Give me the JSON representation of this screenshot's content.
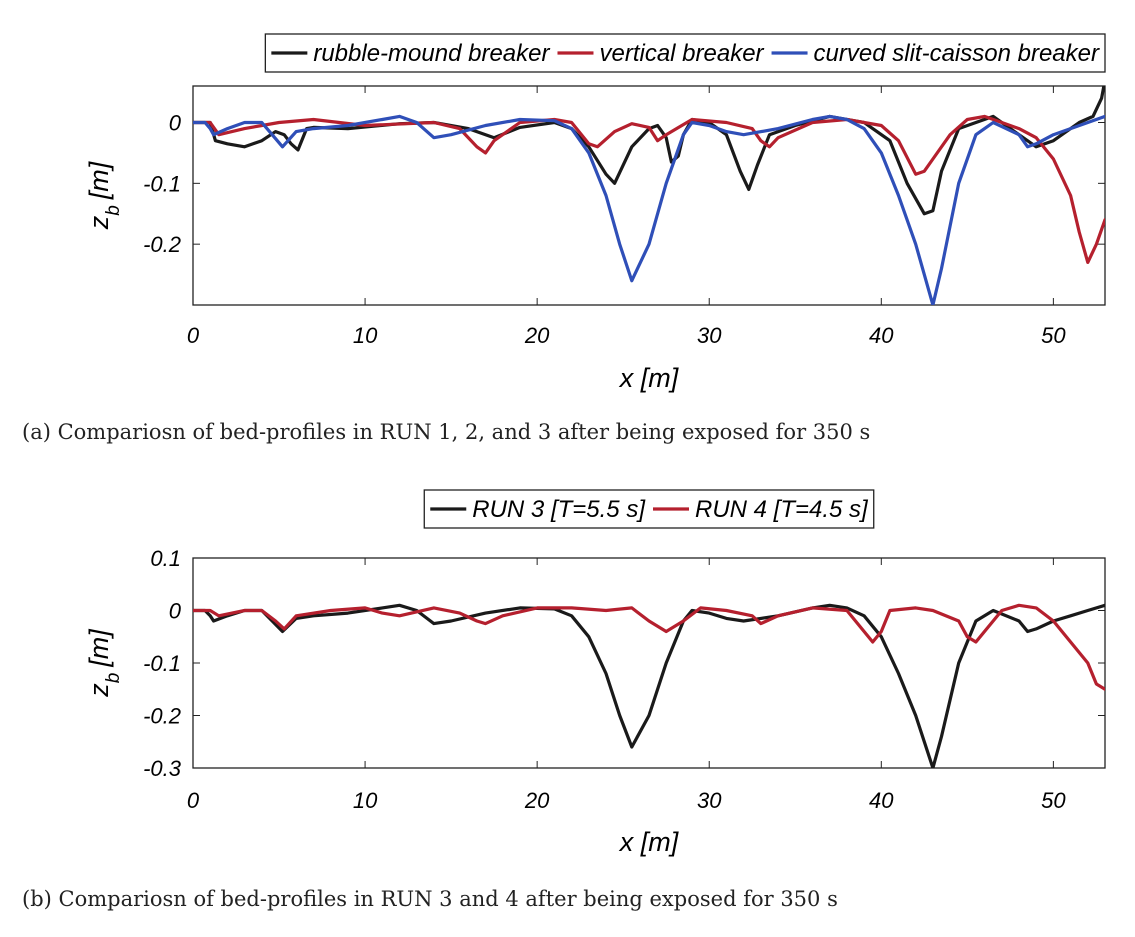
{
  "chart_data": [
    {
      "id": "panel-a",
      "type": "line",
      "caption": "(a) Compariosn of bed-profiles in RUN 1, 2, and 3 after being exposed for 350 s",
      "xlabel": "x [m]",
      "ylabel_main": "z",
      "ylabel_sub": "b",
      "ylabel_unit": "[m]",
      "xlim": [
        0,
        53
      ],
      "ylim": [
        -0.3,
        0.06
      ],
      "xticks": [
        0,
        10,
        20,
        30,
        40,
        50
      ],
      "xtick_labels": [
        "0",
        "10",
        "20",
        "30",
        "40",
        "50"
      ],
      "yticks": [
        0,
        -0.1,
        -0.2
      ],
      "ytick_labels": [
        "0",
        "-0.1",
        "-0.2"
      ],
      "grid": false,
      "legend_position": "top",
      "legend_orientation": "horizontal",
      "series": [
        {
          "name": "rubble-mound breaker",
          "color": "#1a1a1a",
          "points": [
            [
              0,
              0
            ],
            [
              1,
              0
            ],
            [
              1.3,
              -0.03
            ],
            [
              2,
              -0.035
            ],
            [
              3,
              -0.04
            ],
            [
              4,
              -0.03
            ],
            [
              4.8,
              -0.015
            ],
            [
              5.3,
              -0.02
            ],
            [
              5.7,
              -0.035
            ],
            [
              6.1,
              -0.045
            ],
            [
              6.6,
              -0.01
            ],
            [
              7,
              -0.008
            ],
            [
              9,
              -0.01
            ],
            [
              12,
              -0.002
            ],
            [
              14,
              0.0
            ],
            [
              16,
              -0.01
            ],
            [
              17.5,
              -0.025
            ],
            [
              19,
              -0.008
            ],
            [
              21,
              0.0
            ],
            [
              22,
              -0.01
            ],
            [
              23,
              -0.04
            ],
            [
              24,
              -0.085
            ],
            [
              24.5,
              -0.1
            ],
            [
              25,
              -0.07
            ],
            [
              25.5,
              -0.04
            ],
            [
              26.5,
              -0.01
            ],
            [
              27,
              -0.005
            ],
            [
              27.5,
              -0.025
            ],
            [
              27.8,
              -0.065
            ],
            [
              28.2,
              -0.055
            ],
            [
              28.5,
              -0.02
            ],
            [
              29,
              0.005
            ],
            [
              30,
              0.0
            ],
            [
              31,
              -0.02
            ],
            [
              31.8,
              -0.08
            ],
            [
              32.3,
              -0.11
            ],
            [
              32.8,
              -0.07
            ],
            [
              33.5,
              -0.02
            ],
            [
              35,
              -0.005
            ],
            [
              37,
              0.01
            ],
            [
              39,
              0.0
            ],
            [
              40.5,
              -0.03
            ],
            [
              41.5,
              -0.1
            ],
            [
              42.5,
              -0.15
            ],
            [
              43,
              -0.145
            ],
            [
              43.5,
              -0.08
            ],
            [
              44.5,
              -0.01
            ],
            [
              45.5,
              0.0
            ],
            [
              46.5,
              0.01
            ],
            [
              48,
              -0.02
            ],
            [
              49,
              -0.04
            ],
            [
              50,
              -0.03
            ],
            [
              51.5,
              0.0
            ],
            [
              52.3,
              0.01
            ],
            [
              52.8,
              0.04
            ],
            [
              53,
              0.07
            ]
          ]
        },
        {
          "name": "vertical breaker",
          "color": "#b5202e",
          "points": [
            [
              0,
              0
            ],
            [
              1,
              0
            ],
            [
              1.5,
              -0.02
            ],
            [
              3,
              -0.01
            ],
            [
              5,
              0.0
            ],
            [
              7,
              0.005
            ],
            [
              10,
              -0.005
            ],
            [
              14,
              0.0
            ],
            [
              15.5,
              -0.01
            ],
            [
              16.5,
              -0.04
            ],
            [
              17,
              -0.05
            ],
            [
              17.5,
              -0.03
            ],
            [
              19,
              0.0
            ],
            [
              21,
              0.005
            ],
            [
              22,
              0.0
            ],
            [
              23,
              -0.035
            ],
            [
              23.5,
              -0.04
            ],
            [
              24.5,
              -0.015
            ],
            [
              25.5,
              -0.002
            ],
            [
              26.5,
              -0.008
            ],
            [
              27,
              -0.03
            ],
            [
              27.5,
              -0.02
            ],
            [
              29,
              0.005
            ],
            [
              31,
              0.0
            ],
            [
              32.5,
              -0.01
            ],
            [
              33,
              -0.03
            ],
            [
              33.5,
              -0.04
            ],
            [
              34,
              -0.025
            ],
            [
              36,
              0.0
            ],
            [
              38,
              0.005
            ],
            [
              40,
              -0.005
            ],
            [
              41,
              -0.03
            ],
            [
              42,
              -0.085
            ],
            [
              42.5,
              -0.08
            ],
            [
              43,
              -0.06
            ],
            [
              44,
              -0.02
            ],
            [
              45,
              0.005
            ],
            [
              46,
              0.01
            ],
            [
              47,
              0.0
            ],
            [
              48,
              -0.01
            ],
            [
              49,
              -0.025
            ],
            [
              50,
              -0.06
            ],
            [
              51,
              -0.12
            ],
            [
              51.5,
              -0.18
            ],
            [
              52,
              -0.23
            ],
            [
              52.5,
              -0.2
            ],
            [
              53,
              -0.16
            ]
          ]
        },
        {
          "name": "curved slit-caisson breaker",
          "color": "#2f4fb8",
          "points": [
            [
              0,
              0
            ],
            [
              0.7,
              0
            ],
            [
              1,
              -0.01
            ],
            [
              1.2,
              -0.02
            ],
            [
              2,
              -0.01
            ],
            [
              3,
              0.0
            ],
            [
              4,
              0.0
            ],
            [
              4.6,
              -0.02
            ],
            [
              5.2,
              -0.04
            ],
            [
              6,
              -0.015
            ],
            [
              7,
              -0.01
            ],
            [
              9,
              -0.005
            ],
            [
              11,
              0.005
            ],
            [
              12,
              0.01
            ],
            [
              13,
              0.0
            ],
            [
              14,
              -0.025
            ],
            [
              15,
              -0.02
            ],
            [
              17,
              -0.005
            ],
            [
              19,
              0.005
            ],
            [
              21,
              0.003
            ],
            [
              22,
              -0.01
            ],
            [
              23,
              -0.05
            ],
            [
              24,
              -0.12
            ],
            [
              24.8,
              -0.2
            ],
            [
              25.5,
              -0.26
            ],
            [
              26.5,
              -0.2
            ],
            [
              27.5,
              -0.1
            ],
            [
              28.5,
              -0.02
            ],
            [
              29,
              0.0
            ],
            [
              30,
              -0.005
            ],
            [
              31,
              -0.015
            ],
            [
              32,
              -0.02
            ],
            [
              34,
              -0.01
            ],
            [
              36,
              0.005
            ],
            [
              37,
              0.01
            ],
            [
              38,
              0.005
            ],
            [
              39,
              -0.01
            ],
            [
              40,
              -0.05
            ],
            [
              41,
              -0.12
            ],
            [
              42,
              -0.2
            ],
            [
              42.5,
              -0.25
            ],
            [
              43,
              -0.3
            ],
            [
              43.5,
              -0.24
            ],
            [
              44.5,
              -0.1
            ],
            [
              45.5,
              -0.02
            ],
            [
              46.5,
              0.0
            ],
            [
              48,
              -0.02
            ],
            [
              48.5,
              -0.04
            ],
            [
              49,
              -0.035
            ],
            [
              50,
              -0.02
            ],
            [
              51,
              -0.01
            ],
            [
              52,
              0.0
            ],
            [
              53,
              0.01
            ]
          ]
        }
      ]
    },
    {
      "id": "panel-b",
      "type": "line",
      "caption": "(b) Compariosn of bed-profiles in RUN 3 and 4 after being exposed for 350 s",
      "xlabel": "x [m]",
      "ylabel_main": "z",
      "ylabel_sub": "b",
      "ylabel_unit": "[m]",
      "xlim": [
        0,
        53
      ],
      "ylim": [
        -0.3,
        0.1
      ],
      "xticks": [
        0,
        10,
        20,
        30,
        40,
        50
      ],
      "xtick_labels": [
        "0",
        "10",
        "20",
        "30",
        "40",
        "50"
      ],
      "yticks": [
        0.1,
        0,
        -0.1,
        -0.2,
        -0.3
      ],
      "ytick_labels": [
        "0.1",
        "0",
        "-0.1",
        "-0.2",
        "-0.3"
      ],
      "grid": false,
      "legend_position": "top",
      "legend_orientation": "horizontal",
      "series": [
        {
          "name": "RUN 3 [T=5.5 s]",
          "color": "#1a1a1a",
          "points": [
            [
              0,
              0
            ],
            [
              0.7,
              0
            ],
            [
              1,
              -0.01
            ],
            [
              1.2,
              -0.02
            ],
            [
              2,
              -0.01
            ],
            [
              3,
              0.0
            ],
            [
              4,
              0.0
            ],
            [
              4.6,
              -0.02
            ],
            [
              5.2,
              -0.04
            ],
            [
              6,
              -0.015
            ],
            [
              7,
              -0.01
            ],
            [
              9,
              -0.005
            ],
            [
              11,
              0.005
            ],
            [
              12,
              0.01
            ],
            [
              13,
              0.0
            ],
            [
              14,
              -0.025
            ],
            [
              15,
              -0.02
            ],
            [
              17,
              -0.005
            ],
            [
              19,
              0.005
            ],
            [
              21,
              0.003
            ],
            [
              22,
              -0.01
            ],
            [
              23,
              -0.05
            ],
            [
              24,
              -0.12
            ],
            [
              24.8,
              -0.2
            ],
            [
              25.5,
              -0.26
            ],
            [
              26.5,
              -0.2
            ],
            [
              27.5,
              -0.1
            ],
            [
              28.5,
              -0.02
            ],
            [
              29,
              0.0
            ],
            [
              30,
              -0.005
            ],
            [
              31,
              -0.015
            ],
            [
              32,
              -0.02
            ],
            [
              34,
              -0.01
            ],
            [
              36,
              0.005
            ],
            [
              37,
              0.01
            ],
            [
              38,
              0.005
            ],
            [
              39,
              -0.01
            ],
            [
              40,
              -0.05
            ],
            [
              41,
              -0.12
            ],
            [
              42,
              -0.2
            ],
            [
              42.5,
              -0.25
            ],
            [
              43,
              -0.3
            ],
            [
              43.5,
              -0.24
            ],
            [
              44.5,
              -0.1
            ],
            [
              45.5,
              -0.02
            ],
            [
              46.5,
              0.0
            ],
            [
              48,
              -0.02
            ],
            [
              48.5,
              -0.04
            ],
            [
              49,
              -0.035
            ],
            [
              50,
              -0.02
            ],
            [
              51,
              -0.01
            ],
            [
              52,
              0.0
            ],
            [
              53,
              0.01
            ]
          ]
        },
        {
          "name": "RUN 4 [T=4.5 s]",
          "color": "#b5202e",
          "points": [
            [
              0,
              0
            ],
            [
              1,
              0
            ],
            [
              1.5,
              -0.01
            ],
            [
              3,
              0.0
            ],
            [
              4,
              0.0
            ],
            [
              4.8,
              -0.02
            ],
            [
              5.3,
              -0.035
            ],
            [
              6,
              -0.01
            ],
            [
              8,
              0.0
            ],
            [
              10,
              0.005
            ],
            [
              11,
              -0.005
            ],
            [
              12,
              -0.01
            ],
            [
              14,
              0.005
            ],
            [
              15.5,
              -0.005
            ],
            [
              16.5,
              -0.02
            ],
            [
              17,
              -0.025
            ],
            [
              18,
              -0.01
            ],
            [
              20,
              0.005
            ],
            [
              22,
              0.005
            ],
            [
              24,
              0.0
            ],
            [
              25.5,
              0.005
            ],
            [
              26.5,
              -0.02
            ],
            [
              27.5,
              -0.04
            ],
            [
              28.5,
              -0.02
            ],
            [
              29.5,
              0.005
            ],
            [
              31,
              0.0
            ],
            [
              32.5,
              -0.01
            ],
            [
              33,
              -0.025
            ],
            [
              34,
              -0.01
            ],
            [
              36,
              0.005
            ],
            [
              38,
              0.0
            ],
            [
              39,
              -0.04
            ],
            [
              39.5,
              -0.06
            ],
            [
              40,
              -0.04
            ],
            [
              40.5,
              0.0
            ],
            [
              42,
              0.005
            ],
            [
              43,
              0.0
            ],
            [
              44.5,
              -0.02
            ],
            [
              45,
              -0.05
            ],
            [
              45.5,
              -0.06
            ],
            [
              46,
              -0.04
            ],
            [
              47,
              0.0
            ],
            [
              48,
              0.01
            ],
            [
              49,
              0.005
            ],
            [
              50,
              -0.02
            ],
            [
              51,
              -0.06
            ],
            [
              52,
              -0.1
            ],
            [
              52.5,
              -0.14
            ],
            [
              53,
              -0.15
            ]
          ]
        }
      ]
    }
  ]
}
